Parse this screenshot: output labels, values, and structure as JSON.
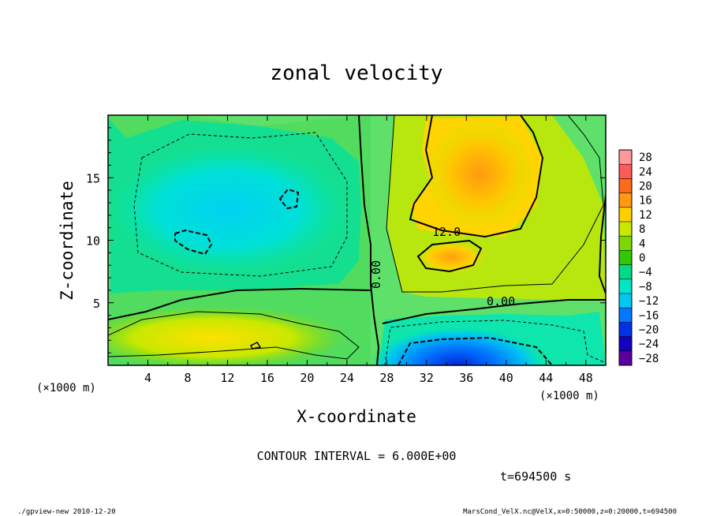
{
  "chart_data": {
    "type": "heatmap",
    "title": "zonal velocity",
    "xlabel": "X-coordinate",
    "ylabel": "Z-coordinate",
    "x_unit_label": "(×1000 m)",
    "z_unit_label": "(×1000 m)",
    "xlim": [
      0,
      50
    ],
    "ylim": [
      0,
      20
    ],
    "x_ticks": [
      "4",
      "8",
      "12",
      "16",
      "20",
      "24",
      "28",
      "32",
      "36",
      "40",
      "44",
      "48"
    ],
    "x_tick_values": [
      4,
      8,
      12,
      16,
      20,
      24,
      28,
      32,
      36,
      40,
      44,
      48
    ],
    "y_ticks": [
      "5",
      "10",
      "15"
    ],
    "y_tick_values": [
      5,
      10,
      15
    ],
    "colorbar": {
      "labels": [
        "28",
        "24",
        "20",
        "16",
        "12",
        "8",
        "4",
        "0",
        "−4",
        "−8",
        "−12",
        "−16",
        "−20",
        "−24",
        "−28"
      ],
      "values": [
        28,
        24,
        20,
        16,
        12,
        8,
        4,
        0,
        -4,
        -8,
        -12,
        -16,
        -20,
        -24,
        -28
      ],
      "colors": [
        "#ff9898",
        "#ff5a5a",
        "#ff6a1a",
        "#ff9a10",
        "#ffd000",
        "#c8e800",
        "#7cd800",
        "#30c800",
        "#00dc86",
        "#00e6c8",
        "#00c8f0",
        "#0078ff",
        "#0032e6",
        "#1400c0",
        "#5a00a0"
      ]
    },
    "contour_labels": [
      "12.0",
      "0.00",
      "0.00"
    ],
    "contour_interval_text": "CONTOUR INTERVAL = 6.000E+00",
    "time_text": "t=694500 s",
    "features": [
      {
        "name": "positive jet core",
        "x": 36,
        "z": 16,
        "value": 16
      },
      {
        "name": "positive lower lobe",
        "x": 34,
        "z": 8.5,
        "value": 14
      },
      {
        "name": "negative upper-left cell",
        "x": 14,
        "z": 12,
        "value": -9
      },
      {
        "name": "negative surface core",
        "x": 34,
        "z": 1,
        "value": -20
      },
      {
        "name": "positive near-surface band",
        "x": 10,
        "z": 2,
        "value": 6
      }
    ]
  },
  "footer": {
    "left": "./gpview-new  2010-12-20",
    "right": "MarsCond_VelX.nc@VelX,x=0:50000,z=0:20000,t=694500"
  }
}
